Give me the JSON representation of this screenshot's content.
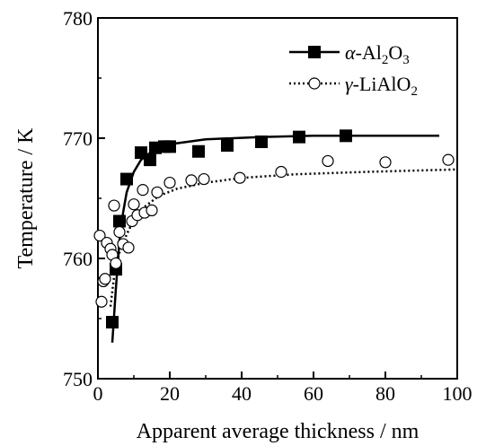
{
  "chart_data": {
    "type": "scatter",
    "xlabel": "Apparent average thickness / nm",
    "ylabel": "Temperature / K",
    "xlim": [
      0,
      100
    ],
    "ylim": [
      750,
      780
    ],
    "x_ticks": [
      0,
      20,
      40,
      60,
      80,
      100
    ],
    "y_ticks": [
      750,
      760,
      770,
      780
    ],
    "grid": false,
    "legend_position": "top-right",
    "series": [
      {
        "name": "α-Al2O3",
        "name_main": "-Al",
        "name_sub1": "2",
        "name_mid": "O",
        "name_sub2": "3",
        "name_symbol": "α",
        "marker": "filled-square",
        "fit_line": "solid",
        "color": "#000000",
        "points": [
          {
            "x": 4.0,
            "y": 754.7
          },
          {
            "x": 5.0,
            "y": 759.1
          },
          {
            "x": 6.0,
            "y": 763.1
          },
          {
            "x": 8.0,
            "y": 766.6
          },
          {
            "x": 12.0,
            "y": 768.8
          },
          {
            "x": 14.5,
            "y": 768.2
          },
          {
            "x": 16.0,
            "y": 769.2
          },
          {
            "x": 18.5,
            "y": 769.3
          },
          {
            "x": 20.0,
            "y": 769.3
          },
          {
            "x": 28.0,
            "y": 768.9
          },
          {
            "x": 36.0,
            "y": 769.4
          },
          {
            "x": 45.5,
            "y": 769.7
          },
          {
            "x": 56.0,
            "y": 770.1
          },
          {
            "x": 69.0,
            "y": 770.2
          }
        ],
        "fit": [
          {
            "x": 4.0,
            "y": 753.0
          },
          {
            "x": 5.0,
            "y": 757.5
          },
          {
            "x": 6.0,
            "y": 761.5
          },
          {
            "x": 7.0,
            "y": 763.8
          },
          {
            "x": 8.0,
            "y": 765.5
          },
          {
            "x": 10.0,
            "y": 767.2
          },
          {
            "x": 12.0,
            "y": 768.2
          },
          {
            "x": 15.0,
            "y": 768.9
          },
          {
            "x": 20.0,
            "y": 769.5
          },
          {
            "x": 30.0,
            "y": 769.9
          },
          {
            "x": 45.0,
            "y": 770.1
          },
          {
            "x": 60.0,
            "y": 770.2
          },
          {
            "x": 95.0,
            "y": 770.2
          }
        ]
      },
      {
        "name": "γ-LiAlO2",
        "name_main": "-LiAlO",
        "name_sub1": "2",
        "name_symbol": "γ",
        "marker": "open-circle",
        "fit_line": "dotted",
        "color": "#000000",
        "points": [
          {
            "x": 0.5,
            "y": 761.9
          },
          {
            "x": 1.0,
            "y": 756.4
          },
          {
            "x": 1.5,
            "y": 758.1
          },
          {
            "x": 2.0,
            "y": 758.3
          },
          {
            "x": 2.5,
            "y": 761.3
          },
          {
            "x": 3.5,
            "y": 760.8
          },
          {
            "x": 4.0,
            "y": 760.3
          },
          {
            "x": 4.5,
            "y": 764.4
          },
          {
            "x": 5.0,
            "y": 759.6
          },
          {
            "x": 6.0,
            "y": 762.2
          },
          {
            "x": 7.0,
            "y": 761.2
          },
          {
            "x": 8.5,
            "y": 760.9
          },
          {
            "x": 9.5,
            "y": 763.1
          },
          {
            "x": 10.0,
            "y": 764.5
          },
          {
            "x": 11.0,
            "y": 763.6
          },
          {
            "x": 12.5,
            "y": 765.7
          },
          {
            "x": 13.0,
            "y": 763.8
          },
          {
            "x": 15.0,
            "y": 764.0
          },
          {
            "x": 16.5,
            "y": 765.5
          },
          {
            "x": 20.0,
            "y": 766.3
          },
          {
            "x": 26.0,
            "y": 766.5
          },
          {
            "x": 29.5,
            "y": 766.6
          },
          {
            "x": 39.5,
            "y": 766.7
          },
          {
            "x": 51.0,
            "y": 767.2
          },
          {
            "x": 64.0,
            "y": 768.1
          },
          {
            "x": 80.0,
            "y": 768.0
          },
          {
            "x": 97.5,
            "y": 768.2
          }
        ],
        "fit": [
          {
            "x": 3.5,
            "y": 756.0
          },
          {
            "x": 4.5,
            "y": 758.5
          },
          {
            "x": 6.0,
            "y": 760.5
          },
          {
            "x": 8.0,
            "y": 762.0
          },
          {
            "x": 10.0,
            "y": 763.2
          },
          {
            "x": 13.0,
            "y": 764.3
          },
          {
            "x": 17.0,
            "y": 765.2
          },
          {
            "x": 22.0,
            "y": 765.8
          },
          {
            "x": 30.0,
            "y": 766.3
          },
          {
            "x": 40.0,
            "y": 766.7
          },
          {
            "x": 55.0,
            "y": 767.0
          },
          {
            "x": 75.0,
            "y": 767.2
          },
          {
            "x": 100.0,
            "y": 767.4
          }
        ]
      }
    ]
  }
}
